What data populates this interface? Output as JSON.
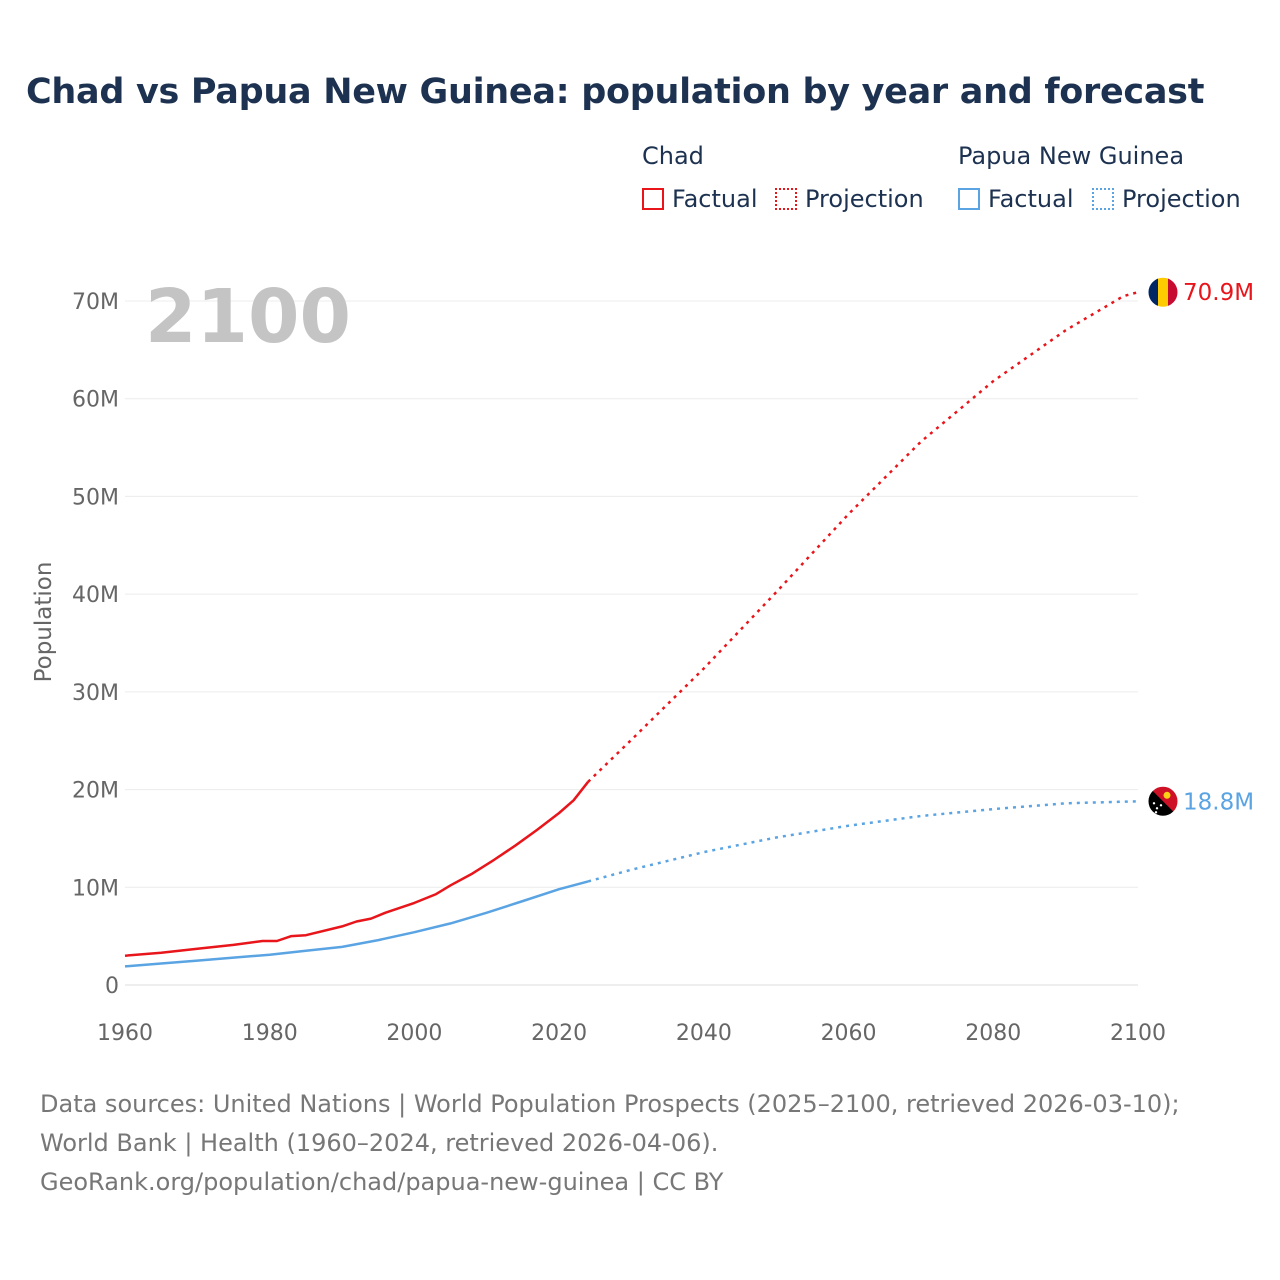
{
  "title": "Chad vs Papua New Guinea: population by year and forecast",
  "legend": {
    "groups": [
      {
        "name": "Chad",
        "factual_label": "Factual",
        "projection_label": "Projection",
        "color": "#e8151b"
      },
      {
        "name": "Papua New Guinea",
        "factual_label": "Factual",
        "projection_label": "Projection",
        "color": "#5aa4e3"
      }
    ]
  },
  "chart_data": {
    "type": "line",
    "year_label": "2100",
    "ylabel": "Population",
    "xlabel": "",
    "xlim": [
      1960,
      2100
    ],
    "ylim": [
      0,
      70
    ],
    "x_ticks": [
      "1960",
      "1980",
      "2000",
      "2020",
      "2040",
      "2060",
      "2080",
      "2100"
    ],
    "y_ticks": [
      {
        "value": 0,
        "label": "0"
      },
      {
        "value": 10,
        "label": "10M"
      },
      {
        "value": 20,
        "label": "20M"
      },
      {
        "value": 30,
        "label": "30M"
      },
      {
        "value": 40,
        "label": "40M"
      },
      {
        "value": 50,
        "label": "50M"
      },
      {
        "value": 60,
        "label": "60M"
      },
      {
        "value": 70,
        "label": "70M"
      }
    ],
    "units": "millions",
    "series": [
      {
        "name": "Chad",
        "color": "#e8151b",
        "end_label": "70.9M",
        "factual": [
          [
            1960,
            3.0
          ],
          [
            1965,
            3.3
          ],
          [
            1970,
            3.7
          ],
          [
            1975,
            4.1
          ],
          [
            1979,
            4.5
          ],
          [
            1981,
            4.5
          ],
          [
            1983,
            5.0
          ],
          [
            1985,
            5.1
          ],
          [
            1990,
            6.0
          ],
          [
            1992,
            6.5
          ],
          [
            1994,
            6.8
          ],
          [
            1996,
            7.4
          ],
          [
            2000,
            8.4
          ],
          [
            2003,
            9.3
          ],
          [
            2005,
            10.2
          ],
          [
            2008,
            11.4
          ],
          [
            2011,
            12.8
          ],
          [
            2014,
            14.3
          ],
          [
            2017,
            15.9
          ],
          [
            2020,
            17.6
          ],
          [
            2022,
            18.9
          ],
          [
            2024,
            20.8
          ]
        ],
        "projection": [
          [
            2024,
            20.8
          ],
          [
            2030,
            25.1
          ],
          [
            2040,
            32.4
          ],
          [
            2050,
            40.2
          ],
          [
            2060,
            48.2
          ],
          [
            2070,
            55.6
          ],
          [
            2080,
            61.8
          ],
          [
            2090,
            67.0
          ],
          [
            2098,
            70.5
          ],
          [
            2100,
            70.9
          ]
        ]
      },
      {
        "name": "Papua New Guinea",
        "color": "#5aa4e3",
        "end_label": "18.8M",
        "factual": [
          [
            1960,
            1.9
          ],
          [
            1965,
            2.2
          ],
          [
            1970,
            2.5
          ],
          [
            1975,
            2.8
          ],
          [
            1980,
            3.1
          ],
          [
            1985,
            3.5
          ],
          [
            1990,
            3.9
          ],
          [
            1995,
            4.6
          ],
          [
            2000,
            5.4
          ],
          [
            2005,
            6.3
          ],
          [
            2010,
            7.4
          ],
          [
            2015,
            8.6
          ],
          [
            2020,
            9.8
          ],
          [
            2024,
            10.6
          ]
        ],
        "projection": [
          [
            2024,
            10.6
          ],
          [
            2030,
            11.8
          ],
          [
            2040,
            13.6
          ],
          [
            2050,
            15.1
          ],
          [
            2060,
            16.3
          ],
          [
            2070,
            17.3
          ],
          [
            2080,
            18.0
          ],
          [
            2090,
            18.6
          ],
          [
            2100,
            18.8
          ]
        ]
      }
    ]
  },
  "footer": {
    "sources": "Data sources: United Nations | World Population Prospects (2025–2100, retrieved 2026-03-10); World Bank | Health (1960–2024, retrieved 2026-04-06).",
    "credit": "GeoRank.org/population/chad/papua-new-guinea | CC BY"
  }
}
